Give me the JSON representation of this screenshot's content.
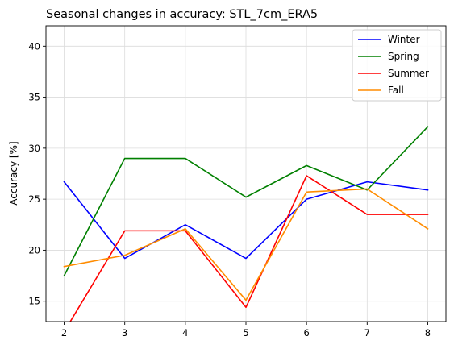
{
  "chart_data": {
    "type": "line",
    "title": "Seasonal changes in accuracy: STL_7cm_ERA5",
    "xlabel": "",
    "ylabel": "Accuracy [%]",
    "x": [
      2,
      3,
      4,
      5,
      6,
      7,
      8
    ],
    "xticks": [
      "2",
      "3",
      "4",
      "5",
      "6",
      "7",
      "8"
    ],
    "yticks": [
      "15",
      "20",
      "25",
      "30",
      "35",
      "40"
    ],
    "xlim": [
      1.7,
      8.3
    ],
    "ylim": [
      13,
      42
    ],
    "grid": true,
    "legend_position": "upper right",
    "series": [
      {
        "name": "Winter",
        "color": "#0000ff",
        "values": [
          26.7,
          19.2,
          22.5,
          19.2,
          25.0,
          26.7,
          25.9
        ]
      },
      {
        "name": "Spring",
        "color": "#008000",
        "values": [
          17.5,
          29.0,
          29.0,
          25.2,
          28.3,
          25.9,
          32.1
        ]
      },
      {
        "name": "Summer",
        "color": "#ff0000",
        "values": [
          12.0,
          21.9,
          21.9,
          14.4,
          27.3,
          23.5,
          23.5
        ]
      },
      {
        "name": "Fall",
        "color": "#ff8c00",
        "values": [
          18.4,
          19.5,
          22.1,
          15.1,
          25.7,
          26.0,
          22.1
        ]
      }
    ]
  }
}
